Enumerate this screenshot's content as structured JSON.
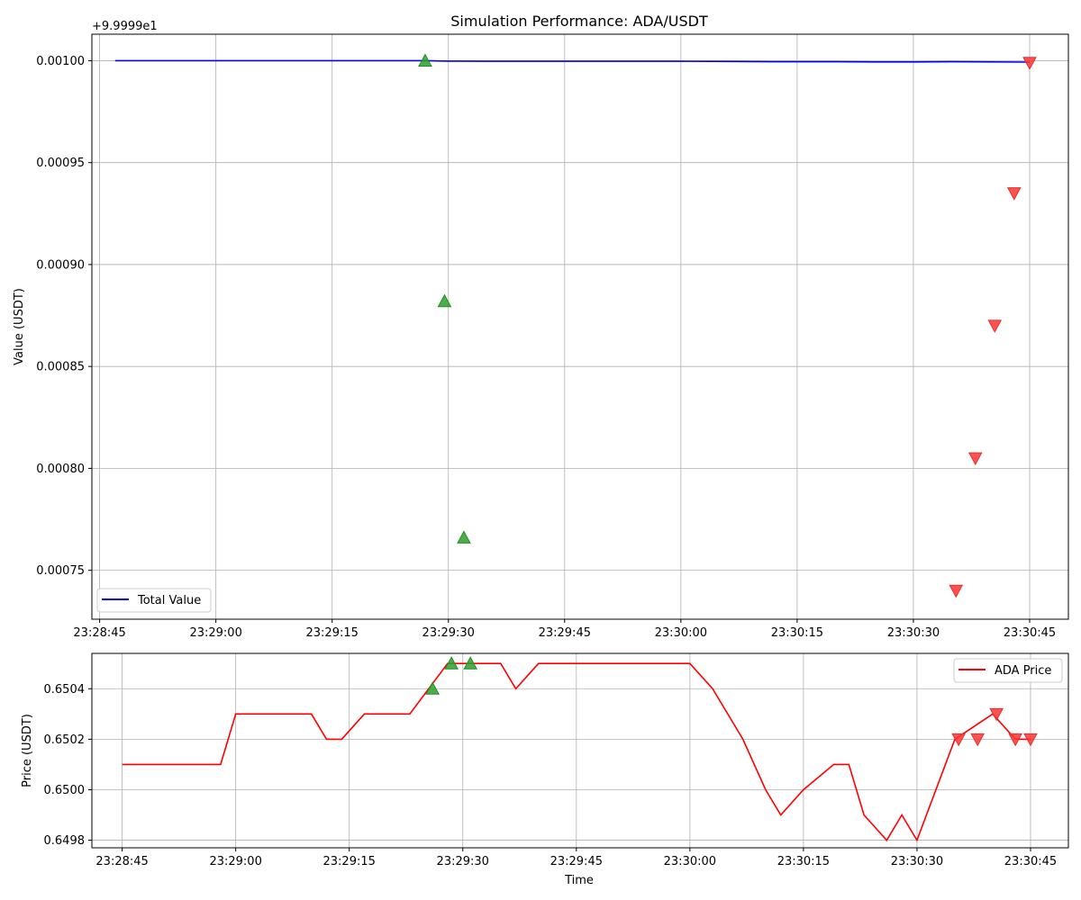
{
  "figure": {
    "title": "Simulation Performance: ADA/USDT",
    "xlabel": "Time"
  },
  "chart_data": [
    {
      "type": "line",
      "title": "Simulation Performance: ADA/USDT",
      "ylabel": "Value (USDT)",
      "offset_text": "+9.9999e1",
      "legend": {
        "label": "Total Value",
        "color": "#0000ff",
        "loc": "lower-left"
      },
      "grid": true,
      "x_ticks": [
        "23:28:45",
        "23:29:00",
        "23:29:15",
        "23:29:30",
        "23:29:45",
        "23:30:00",
        "23:30:15",
        "23:30:30",
        "23:30:45"
      ],
      "y_ticks": [
        "0.00075",
        "0.00080",
        "0.00085",
        "0.00090",
        "0.00095",
        "0.00100"
      ],
      "xlim": [
        "23:28:44",
        "23:30:50"
      ],
      "ylim_offset": [
        0.000726,
        0.001013
      ],
      "series": [
        {
          "name": "Total Value",
          "color": "#0000ff",
          "x": [
            "23:28:47",
            "23:29:00",
            "23:29:15",
            "23:29:27",
            "23:29:30",
            "23:29:35",
            "23:29:40",
            "23:29:45",
            "23:30:00",
            "23:30:07",
            "23:30:12",
            "23:30:20",
            "23:30:25",
            "23:30:30",
            "23:30:35",
            "23:30:45"
          ],
          "y": [
            0.001,
            0.001,
            0.001,
            0.001,
            0.0009998,
            0.0009997,
            0.0009997,
            0.0009997,
            0.0009997,
            0.0009996,
            0.0009995,
            0.0009995,
            0.0009994,
            0.0009994,
            0.0009995,
            0.0009993
          ]
        }
      ],
      "buy_markers": {
        "color": "#2ca02c",
        "x": [
          "23:29:27",
          "23:29:29.5",
          "23:29:32"
        ],
        "y": [
          0.001,
          0.000882,
          0.000766
        ]
      },
      "sell_markers": {
        "color": "#ff3333",
        "x": [
          "23:30:35.5",
          "23:30:38",
          "23:30:40.5",
          "23:30:43",
          "23:30:45"
        ],
        "y": [
          0.00074,
          0.000805,
          0.00087,
          0.000935,
          0.000999
        ]
      }
    },
    {
      "type": "line",
      "ylabel": "Price (USDT)",
      "legend": {
        "label": "ADA Price",
        "color": "#ff0000",
        "loc": "upper-right"
      },
      "grid": true,
      "x_ticks": [
        "23:28:45",
        "23:29:00",
        "23:29:15",
        "23:29:30",
        "23:29:45",
        "23:30:00",
        "23:30:15",
        "23:30:30",
        "23:30:45"
      ],
      "y_ticks": [
        "0.6498",
        "0.6500",
        "0.6502",
        "0.6504"
      ],
      "xlim": [
        "23:28:41",
        "23:30:50"
      ],
      "ylim": [
        0.64977,
        0.65054
      ],
      "series": [
        {
          "name": "ADA Price",
          "color": "#ff0000",
          "x": [
            "23:28:45",
            "23:28:50",
            "23:28:55",
            "23:28:58",
            "23:29:00",
            "23:29:10",
            "23:29:12",
            "23:29:14",
            "23:29:17",
            "23:29:20",
            "23:29:23",
            "23:29:28",
            "23:29:35",
            "23:29:37",
            "23:29:40",
            "23:29:45",
            "23:30:00",
            "23:30:03",
            "23:30:07",
            "23:30:10",
            "23:30:12",
            "23:30:15",
            "23:30:19",
            "23:30:21",
            "23:30:23",
            "23:30:26",
            "23:30:28",
            "23:30:30",
            "23:30:35",
            "23:30:40",
            "23:30:43",
            "23:30:45"
          ],
          "y": [
            0.6501,
            0.6501,
            0.6501,
            0.6501,
            0.6503,
            0.6503,
            0.6502,
            0.6502,
            0.6503,
            0.6503,
            0.6503,
            0.6505,
            0.6505,
            0.6504,
            0.6505,
            0.6505,
            0.6505,
            0.6504,
            0.6502,
            0.65,
            0.6499,
            0.65,
            0.6501,
            0.6501,
            0.6499,
            0.6498,
            0.6499,
            0.6498,
            0.6502,
            0.6503,
            0.6502,
            0.6502
          ]
        }
      ],
      "buy_markers": {
        "color": "#2ca02c",
        "x": [
          "23:29:26",
          "23:29:28.5",
          "23:29:31"
        ],
        "y": [
          0.6504,
          0.6505,
          0.6505
        ]
      },
      "sell_markers": {
        "color": "#ff3333",
        "x": [
          "23:30:35.5",
          "23:30:38",
          "23:30:40.5",
          "23:30:43",
          "23:30:45"
        ],
        "y": [
          0.6502,
          0.6502,
          0.6503,
          0.6502,
          0.6502
        ]
      }
    }
  ]
}
